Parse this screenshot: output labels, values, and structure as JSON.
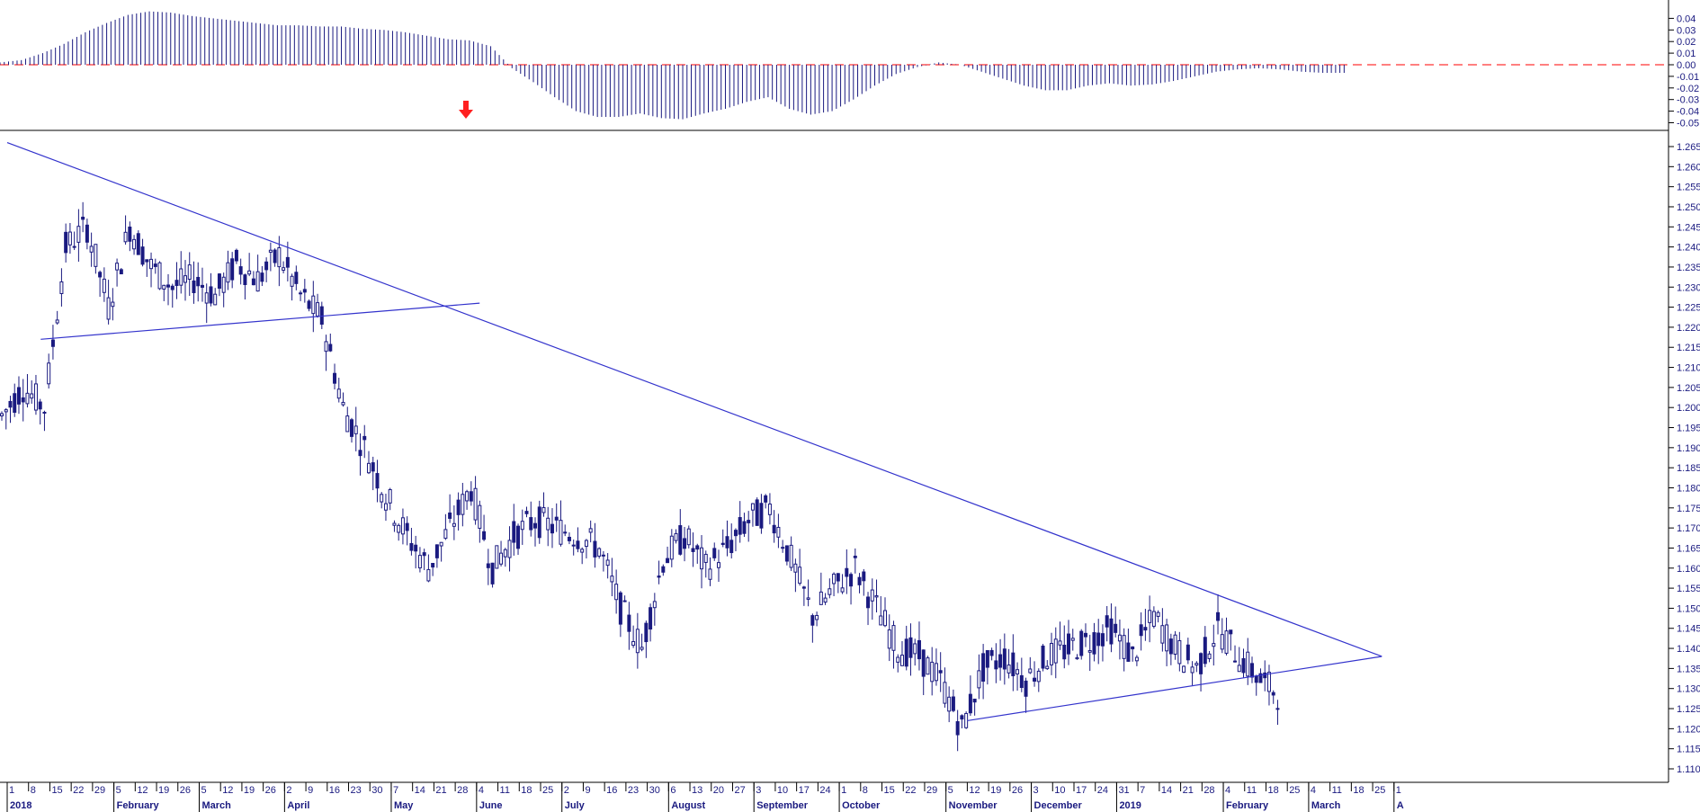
{
  "colors": {
    "ink": "#1a1a80",
    "trend": "#3333cc",
    "zero_line": "#ff3333",
    "arrow": "#ff2020",
    "axis": "#000000"
  },
  "chart_data": [
    {
      "type": "bar",
      "role": "oscillator",
      "ylim": [
        -0.055,
        0.045
      ],
      "yticks": [
        "0.04",
        "0.03",
        "0.02",
        "0.01",
        "0.00",
        "-0.01",
        "-0.02",
        "-0.03",
        "-0.04",
        "-0.05"
      ],
      "zero_line": "dashed red",
      "signal_arrow": "down, at the late-April zero crossing",
      "series": [
        {
          "sampled": "weekly",
          "values": [
            0.002,
            0.004,
            0.01,
            0.018,
            0.028,
            0.036,
            0.043,
            0.046,
            0.045,
            0.042,
            0.04,
            0.038,
            0.036,
            0.034,
            0.034,
            0.033,
            0.033,
            0.031,
            0.03,
            0.028,
            0.025,
            0.022,
            0.021,
            0.016,
            -0.003,
            -0.015,
            -0.028,
            -0.04,
            -0.045,
            -0.045,
            -0.042,
            -0.046,
            -0.047,
            -0.042,
            -0.038,
            -0.032,
            -0.028,
            -0.038,
            -0.043,
            -0.04,
            -0.03,
            -0.018,
            -0.008,
            -0.002,
            0.002,
            0.0,
            -0.006,
            -0.012,
            -0.018,
            -0.022,
            -0.022,
            -0.018,
            -0.016,
            -0.018,
            -0.017,
            -0.014,
            -0.01,
            -0.006,
            -0.004,
            -0.003,
            -0.004,
            -0.006,
            -0.007,
            -0.007
          ]
        }
      ]
    },
    {
      "type": "candlestick",
      "role": "price",
      "ylim": [
        1.108,
        1.268
      ],
      "yticks": [
        "1.265",
        "1.260",
        "1.255",
        "1.250",
        "1.245",
        "1.240",
        "1.235",
        "1.230",
        "1.225",
        "1.220",
        "1.215",
        "1.210",
        "1.205",
        "1.200",
        "1.195",
        "1.190",
        "1.185",
        "1.180",
        "1.175",
        "1.170",
        "1.165",
        "1.160",
        "1.155",
        "1.150",
        "1.145",
        "1.140",
        "1.135",
        "1.130",
        "1.125",
        "1.120",
        "1.115",
        "1.110"
      ],
      "x_day_ticks": [
        "1",
        "8",
        "15",
        "22",
        "29",
        "5",
        "12",
        "19",
        "26",
        "5",
        "12",
        "19",
        "26",
        "2",
        "9",
        "16",
        "23",
        "30",
        "7",
        "14",
        "21",
        "28",
        "4",
        "11",
        "18",
        "25",
        "2",
        "9",
        "16",
        "23",
        "30",
        "6",
        "13",
        "20",
        "27",
        "3",
        "10",
        "17",
        "24",
        "1",
        "8",
        "15",
        "22",
        "29",
        "5",
        "12",
        "19",
        "26",
        "3",
        "10",
        "17",
        "24",
        "31",
        "7",
        "14",
        "21",
        "28",
        "4",
        "11",
        "18",
        "25",
        "4",
        "11",
        "18",
        "25",
        "1"
      ],
      "x_month_labels": [
        "2018",
        "February",
        "March",
        "April",
        "May",
        "June",
        "July",
        "August",
        "September",
        "October",
        "November",
        "December",
        "2019",
        "February",
        "March",
        "A"
      ],
      "series": [
        {
          "sampled": "weekly closes",
          "values": [
            1.198,
            1.205,
            1.2,
            1.24,
            1.245,
            1.225,
            1.245,
            1.235,
            1.23,
            1.232,
            1.228,
            1.236,
            1.232,
            1.238,
            1.228,
            1.222,
            1.2,
            1.19,
            1.178,
            1.168,
            1.16,
            1.17,
            1.18,
            1.16,
            1.168,
            1.172,
            1.17,
            1.168,
            1.165,
            1.15,
            1.14,
            1.162,
            1.168,
            1.16,
            1.165,
            1.172,
            1.175,
            1.162,
            1.148,
            1.155,
            1.16,
            1.15,
            1.14,
            1.138,
            1.132,
            1.12,
            1.135,
            1.138,
            1.132,
            1.138,
            1.14,
            1.142,
            1.145,
            1.138,
            1.148,
            1.14,
            1.135,
            1.145,
            1.138,
            1.132,
            1.128
          ]
        }
      ],
      "trendlines": [
        {
          "from": [
            "2018-01-01",
            1.266
          ],
          "to": [
            "2019-03-28",
            1.138
          ]
        },
        {
          "from": [
            "2018-01-12",
            1.217
          ],
          "to": [
            "2018-06-05",
            1.226
          ]
        },
        {
          "from": [
            "2018-11-12",
            1.122
          ],
          "to": [
            "2019-03-28",
            1.138
          ]
        }
      ]
    }
  ]
}
